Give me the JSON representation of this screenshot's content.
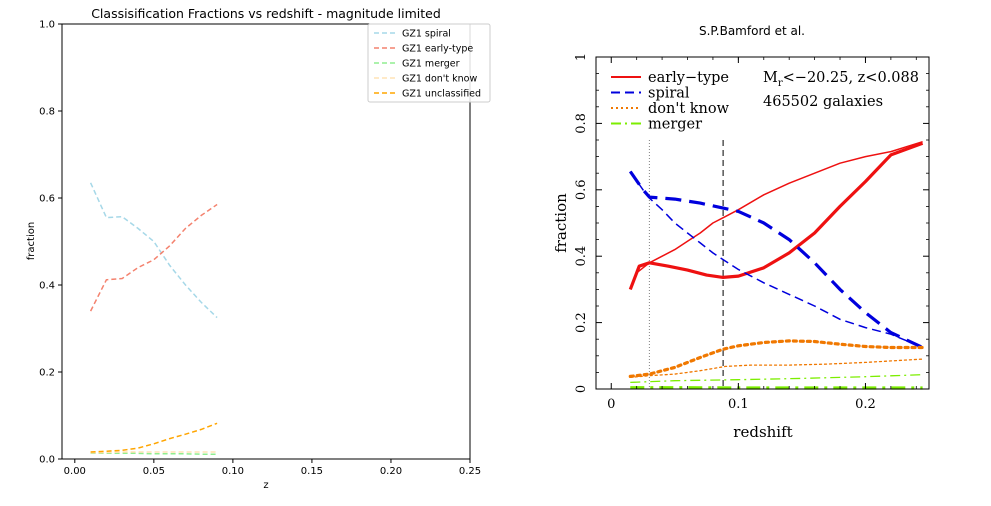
{
  "left_chart_data": {
    "type": "line",
    "title": "Classisification Fractions vs redshift - magnitude limited",
    "xlabel": "z",
    "ylabel": "fraction",
    "xlim": [
      -0.0081,
      0.25
    ],
    "ylim": [
      0.0,
      1.0
    ],
    "xticks": [
      0.0,
      0.05,
      0.1,
      0.15,
      0.2,
      0.25
    ],
    "xtick_labels": [
      "0.00",
      "0.05",
      "0.10",
      "0.15",
      "0.20",
      "0.25"
    ],
    "yticks": [
      0.0,
      0.2,
      0.4,
      0.6,
      0.8,
      1.0
    ],
    "ytick_labels": [
      "0.0",
      "0.2",
      "0.4",
      "0.6",
      "0.8",
      "1.0"
    ],
    "legend_position": "top-right",
    "grid": false,
    "series": [
      {
        "name": "GZ1 spiral",
        "color": "#a6d8e8",
        "x": [
          0.01,
          0.02,
          0.03,
          0.04,
          0.05,
          0.06,
          0.07,
          0.08,
          0.09
        ],
        "y": [
          0.635,
          0.555,
          0.557,
          0.53,
          0.5,
          0.445,
          0.4,
          0.36,
          0.325
        ]
      },
      {
        "name": "GZ1 early-type",
        "color": "#f4826e",
        "x": [
          0.01,
          0.02,
          0.03,
          0.04,
          0.05,
          0.06,
          0.07,
          0.08,
          0.09
        ],
        "y": [
          0.34,
          0.412,
          0.415,
          0.44,
          0.458,
          0.49,
          0.53,
          0.56,
          0.585
        ]
      },
      {
        "name": "GZ1 merger",
        "color": "#90ee90",
        "x": [
          0.01,
          0.02,
          0.03,
          0.04,
          0.05,
          0.06,
          0.07,
          0.08,
          0.09
        ],
        "y": [
          0.013,
          0.013,
          0.013,
          0.013,
          0.012,
          0.012,
          0.012,
          0.011,
          0.011
        ]
      },
      {
        "name": "GZ1 don't know",
        "color": "#ffe4b5",
        "x": [
          0.01,
          0.02,
          0.03,
          0.04,
          0.05,
          0.06,
          0.07,
          0.08,
          0.09
        ],
        "y": [
          0.014,
          0.015,
          0.016,
          0.016,
          0.016,
          0.016,
          0.016,
          0.016,
          0.016
        ]
      },
      {
        "name": "GZ1 unclassified",
        "color": "#ffa500",
        "x": [
          0.01,
          0.02,
          0.03,
          0.04,
          0.05,
          0.06,
          0.07,
          0.08,
          0.09
        ],
        "y": [
          0.016,
          0.018,
          0.02,
          0.025,
          0.035,
          0.047,
          0.057,
          0.068,
          0.082
        ]
      }
    ]
  },
  "right_panel": {
    "title": "S.P.Bamford et al."
  },
  "right_chart_data": {
    "type": "line",
    "xlabel": "redshift",
    "ylabel": "fraction",
    "xlim": [
      -0.012,
      0.25
    ],
    "ylim": [
      0.0,
      1.0
    ],
    "xticks": [
      0,
      0.1,
      0.2
    ],
    "xtick_labels": [
      "0",
      "0.1",
      "0.2"
    ],
    "yticks": [
      0,
      0.2,
      0.4,
      0.6,
      0.8,
      1
    ],
    "ytick_labels": [
      "0",
      "0.2",
      "0.4",
      "0.6",
      "0.8",
      "1"
    ],
    "annotation_line1_prefix": "M",
    "annotation_line1_sub": "r",
    "annotation_line1_rest": "<−20.25,  z<0.088",
    "annotation_line2": "465502 galaxies",
    "vertical_lines": [
      {
        "x": 0.03,
        "style": "dotted",
        "color": "#808080"
      },
      {
        "x": 0.088,
        "style": "dashed",
        "color": "#000000"
      }
    ],
    "legend": [
      {
        "label": "early−type",
        "color": "#ee1111",
        "style": "solid"
      },
      {
        "label": "spiral",
        "color": "#0000dd",
        "style": "dashed"
      },
      {
        "label": "don't know",
        "color": "#f07800",
        "style": "dotted"
      },
      {
        "label": "merger",
        "color": "#7cee00",
        "style": "dashdot"
      }
    ],
    "series": [
      {
        "label": "early−type",
        "color": "#ee1111",
        "style": "solid",
        "width": 1.5,
        "x": [
          0.015,
          0.02,
          0.03,
          0.04,
          0.05,
          0.06,
          0.07,
          0.08,
          0.09,
          0.1,
          0.12,
          0.14,
          0.16,
          0.18,
          0.2,
          0.22,
          0.245
        ],
        "y": [
          0.3,
          0.35,
          0.38,
          0.4,
          0.42,
          0.445,
          0.47,
          0.5,
          0.52,
          0.54,
          0.585,
          0.62,
          0.65,
          0.68,
          0.7,
          0.715,
          0.745
        ]
      },
      {
        "label": "early−type",
        "color": "#ee1111",
        "style": "solid",
        "width": 3.2,
        "x": [
          0.015,
          0.022,
          0.03,
          0.045,
          0.06,
          0.075,
          0.088,
          0.1,
          0.12,
          0.14,
          0.16,
          0.18,
          0.2,
          0.22,
          0.245
        ],
        "y": [
          0.3,
          0.37,
          0.38,
          0.37,
          0.358,
          0.343,
          0.336,
          0.34,
          0.365,
          0.41,
          0.47,
          0.55,
          0.625,
          0.705,
          0.74
        ]
      },
      {
        "label": "spiral",
        "color": "#0000dd",
        "style": "dashed",
        "width": 1.5,
        "x": [
          0.015,
          0.025,
          0.03,
          0.04,
          0.05,
          0.06,
          0.07,
          0.08,
          0.09,
          0.1,
          0.12,
          0.14,
          0.16,
          0.18,
          0.2,
          0.22,
          0.245
        ],
        "y": [
          0.655,
          0.6,
          0.575,
          0.54,
          0.5,
          0.47,
          0.44,
          0.41,
          0.385,
          0.36,
          0.32,
          0.285,
          0.25,
          0.21,
          0.185,
          0.165,
          0.125
        ]
      },
      {
        "label": "spiral",
        "color": "#0000dd",
        "style": "dashed",
        "width": 3.2,
        "x": [
          0.015,
          0.025,
          0.03,
          0.04,
          0.05,
          0.06,
          0.07,
          0.088,
          0.1,
          0.12,
          0.14,
          0.16,
          0.18,
          0.2,
          0.22,
          0.245
        ],
        "y": [
          0.655,
          0.6,
          0.578,
          0.575,
          0.572,
          0.566,
          0.56,
          0.545,
          0.535,
          0.5,
          0.45,
          0.38,
          0.3,
          0.23,
          0.17,
          0.125
        ]
      },
      {
        "label": "don't know",
        "color": "#f07800",
        "style": "dotted",
        "width": 1.3,
        "x": [
          0.015,
          0.03,
          0.05,
          0.07,
          0.09,
          0.11,
          0.14,
          0.17,
          0.2,
          0.245
        ],
        "y": [
          0.035,
          0.04,
          0.045,
          0.055,
          0.068,
          0.072,
          0.072,
          0.075,
          0.08,
          0.09
        ]
      },
      {
        "label": "don't know",
        "color": "#f07800",
        "style": "dotted",
        "width": 3.2,
        "x": [
          0.015,
          0.03,
          0.05,
          0.07,
          0.088,
          0.1,
          0.12,
          0.14,
          0.16,
          0.18,
          0.2,
          0.22,
          0.245
        ],
        "y": [
          0.038,
          0.045,
          0.065,
          0.095,
          0.12,
          0.13,
          0.14,
          0.145,
          0.143,
          0.135,
          0.128,
          0.125,
          0.125
        ]
      },
      {
        "label": "merger",
        "color": "#7cee00",
        "style": "dashdot",
        "width": 1.3,
        "x": [
          0.015,
          0.05,
          0.1,
          0.15,
          0.2,
          0.245
        ],
        "y": [
          0.02,
          0.025,
          0.028,
          0.032,
          0.037,
          0.043
        ]
      },
      {
        "label": "merger",
        "color": "#7cee00",
        "style": "dashdot",
        "width": 3.2,
        "x": [
          0.015,
          0.05,
          0.1,
          0.15,
          0.2,
          0.245
        ],
        "y": [
          0.004,
          0.004,
          0.003,
          0.003,
          0.003,
          0.003
        ]
      }
    ]
  }
}
